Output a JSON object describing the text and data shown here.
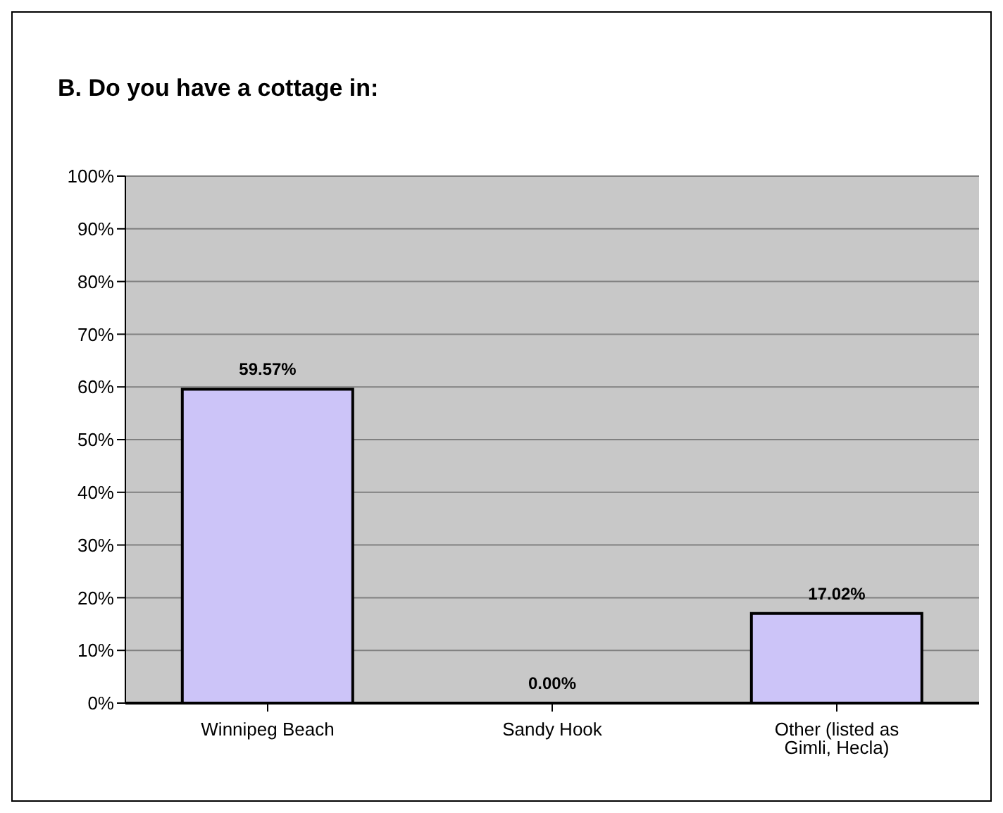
{
  "chart_data": {
    "type": "bar",
    "title": "B. Do you have a cottage in:",
    "categories": [
      "Winnipeg Beach",
      "Sandy Hook",
      "Other (listed as Gimli, Hecla)"
    ],
    "values": [
      59.57,
      0,
      17.02
    ],
    "value_labels": [
      "59.57%",
      "0.00%",
      "17.02%"
    ],
    "color": "#ccc4f8",
    "ylim": [
      0,
      100
    ],
    "yticks": [
      {
        "value": 0,
        "label": "0%"
      },
      {
        "value": 10,
        "label": "10%"
      },
      {
        "value": 20,
        "label": "20%"
      },
      {
        "value": 30,
        "label": "30%"
      },
      {
        "value": 40,
        "label": "40%"
      },
      {
        "value": 50,
        "label": "50%"
      },
      {
        "value": 60,
        "label": "60%"
      },
      {
        "value": 70,
        "label": "70%"
      },
      {
        "value": 80,
        "label": "80%"
      },
      {
        "value": 90,
        "label": "90%"
      },
      {
        "value": 100,
        "label": "100%"
      }
    ],
    "grid": "y",
    "legend": false
  }
}
